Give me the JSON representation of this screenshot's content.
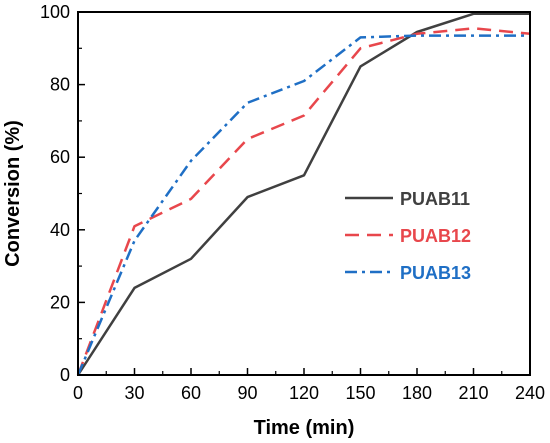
{
  "chart_data": {
    "type": "line",
    "xlabel": "Time (min)",
    "ylabel": "Conversion (%)",
    "xlim": [
      0,
      240
    ],
    "ylim": [
      0,
      100
    ],
    "x_ticks": [
      0,
      30,
      60,
      90,
      120,
      150,
      180,
      210,
      240
    ],
    "y_ticks": [
      0,
      20,
      40,
      60,
      80,
      100
    ],
    "grid": false,
    "legend_position": "center-right",
    "series": [
      {
        "name": "PUAB11",
        "color": "#404040",
        "line_style": "solid",
        "points": [
          [
            0,
            0
          ],
          [
            30,
            24
          ],
          [
            60,
            32
          ],
          [
            90,
            49
          ],
          [
            120,
            55
          ],
          [
            150,
            85
          ],
          [
            180,
            94.5
          ],
          [
            210,
            99.5
          ],
          [
            240,
            99.5
          ]
        ]
      },
      {
        "name": "PUAB12",
        "color": "#e8474c",
        "line_style": "dashed",
        "points": [
          [
            0,
            0
          ],
          [
            30,
            41
          ],
          [
            60,
            48.5
          ],
          [
            90,
            65
          ],
          [
            120,
            71.5
          ],
          [
            150,
            90
          ],
          [
            180,
            94
          ],
          [
            210,
            95.5
          ],
          [
            240,
            94
          ]
        ]
      },
      {
        "name": "PUAB13",
        "color": "#1f6fc5",
        "line_style": "dash-dot",
        "points": [
          [
            0,
            0
          ],
          [
            30,
            37
          ],
          [
            60,
            59
          ],
          [
            90,
            75
          ],
          [
            120,
            81
          ],
          [
            150,
            93
          ],
          [
            180,
            93.5
          ],
          [
            210,
            93.5
          ],
          [
            240,
            93.5
          ]
        ]
      }
    ]
  }
}
